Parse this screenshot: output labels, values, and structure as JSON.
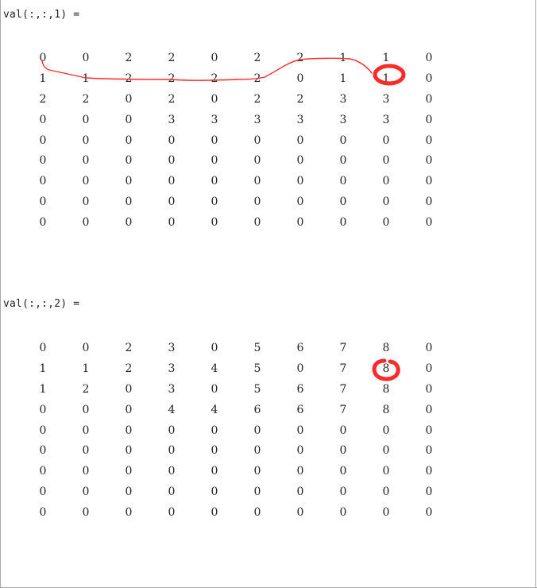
{
  "outputs": [
    {
      "header": "val(:,:,1) =",
      "rows": [
        [
          "0",
          "0",
          "2",
          "2",
          "0",
          "2",
          "2",
          "1",
          "1",
          "0"
        ],
        [
          "1",
          "1",
          "2",
          "2",
          "2",
          "2",
          "0",
          "1",
          "1",
          "0"
        ],
        [
          "2",
          "2",
          "0",
          "2",
          "0",
          "2",
          "2",
          "3",
          "3",
          "0"
        ],
        [
          "0",
          "0",
          "0",
          "3",
          "3",
          "3",
          "3",
          "3",
          "3",
          "0"
        ],
        [
          "0",
          "0",
          "0",
          "0",
          "0",
          "0",
          "0",
          "0",
          "0",
          "0"
        ],
        [
          "0",
          "0",
          "0",
          "0",
          "0",
          "0",
          "0",
          "0",
          "0",
          "0"
        ],
        [
          "0",
          "0",
          "0",
          "0",
          "0",
          "0",
          "0",
          "0",
          "0",
          "0"
        ],
        [
          "0",
          "0",
          "0",
          "0",
          "0",
          "0",
          "0",
          "0",
          "0",
          "0"
        ],
        [
          "0",
          "0",
          "0",
          "0",
          "0",
          "0",
          "0",
          "0",
          "0",
          "0"
        ]
      ]
    },
    {
      "header": "val(:,:,2) =",
      "rows": [
        [
          "0",
          "0",
          "2",
          "3",
          "0",
          "5",
          "6",
          "7",
          "8",
          "0"
        ],
        [
          "1",
          "1",
          "2",
          "3",
          "4",
          "5",
          "0",
          "7",
          "8",
          "0"
        ],
        [
          "1",
          "2",
          "0",
          "3",
          "0",
          "5",
          "6",
          "7",
          "8",
          "0"
        ],
        [
          "0",
          "0",
          "0",
          "4",
          "4",
          "6",
          "6",
          "7",
          "8",
          "0"
        ],
        [
          "0",
          "0",
          "0",
          "0",
          "0",
          "0",
          "0",
          "0",
          "0",
          "0"
        ],
        [
          "0",
          "0",
          "0",
          "0",
          "0",
          "0",
          "0",
          "0",
          "0",
          "0"
        ],
        [
          "0",
          "0",
          "0",
          "0",
          "0",
          "0",
          "0",
          "0",
          "0",
          "0"
        ],
        [
          "0",
          "0",
          "0",
          "0",
          "0",
          "0",
          "0",
          "0",
          "0",
          "0"
        ],
        [
          "0",
          "0",
          "0",
          "0",
          "0",
          "0",
          "0",
          "0",
          "0",
          "0"
        ]
      ]
    }
  ],
  "annotations": {
    "ink_color": "#ff2a2a"
  }
}
